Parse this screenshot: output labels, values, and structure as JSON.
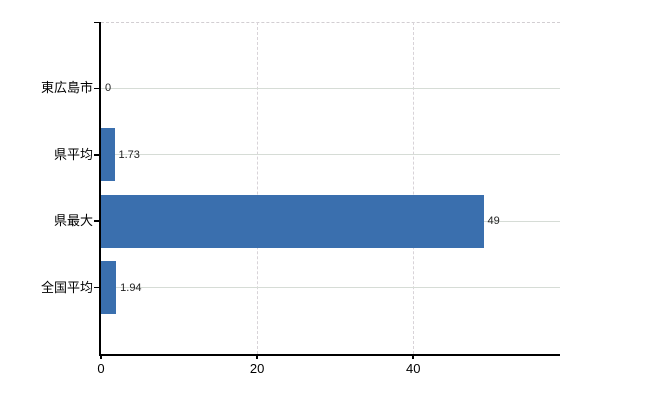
{
  "chart_data": {
    "type": "bar",
    "orientation": "horizontal",
    "title": "",
    "xlabel": "",
    "ylabel": "",
    "categories": [
      "東広島市",
      "県平均",
      "県最大",
      "全国平均"
    ],
    "values": [
      0,
      1.73,
      49,
      1.94
    ],
    "value_labels": [
      "0",
      "1.73",
      "49",
      "1.94"
    ],
    "x_ticks": [
      0,
      20,
      40
    ],
    "x_tick_labels": [
      "0",
      "20",
      "40"
    ],
    "xlim": [
      0,
      58.8
    ],
    "grid": true,
    "legend": false,
    "colors": {
      "bar": "#3a6fae",
      "axis": "#000000",
      "h_gridline": "#d6dcd6",
      "v_gridline": "#d8d3d8",
      "top_border": "#d2ced2",
      "value_label": "#222222",
      "tick_label": "#000000"
    }
  }
}
